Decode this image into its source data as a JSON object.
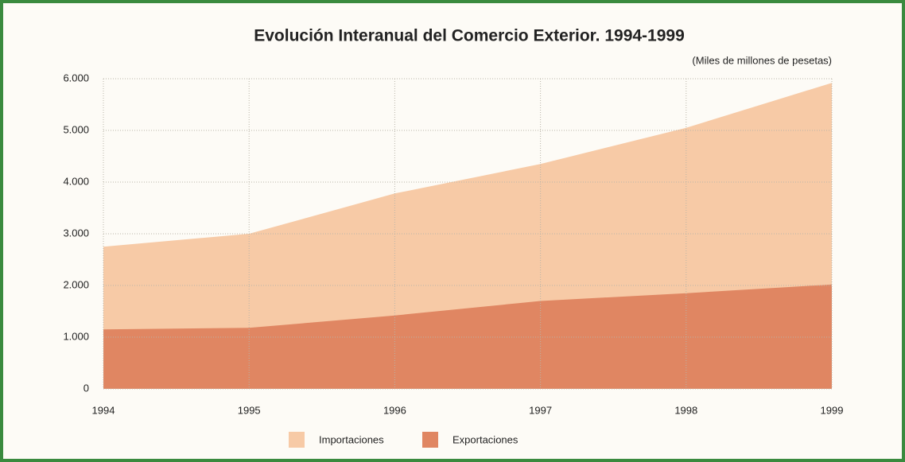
{
  "chart_data": {
    "type": "area",
    "title": "Evolución Interanual del Comercio Exterior. 1994-1999",
    "subtitle": "(Miles de millones de pesetas)",
    "x": [
      1994,
      1995,
      1996,
      1997,
      1998,
      1999
    ],
    "xlim": [
      1994,
      1999
    ],
    "xticks": [
      1994,
      1995,
      1996,
      1997,
      1998,
      1999
    ],
    "ylim": [
      0,
      6000
    ],
    "yticks": [
      0,
      {
        "value": 1000,
        "label": "1.000"
      },
      {
        "value": 2000,
        "label": "2.000"
      },
      {
        "value": 3000,
        "label": "3.000"
      },
      {
        "value": 4000,
        "label": "4.000"
      },
      {
        "value": 5000,
        "label": "5.000"
      },
      {
        "value": 6000,
        "label": "6.000"
      }
    ],
    "grid": true,
    "series": [
      {
        "name": "Importaciones",
        "color": "#f7caa6",
        "values": [
          2750,
          3000,
          3780,
          4350,
          5050,
          5920
        ]
      },
      {
        "name": "Exportaciones",
        "color": "#e08662",
        "values": [
          1150,
          1180,
          1420,
          1700,
          1850,
          2020
        ]
      }
    ]
  }
}
